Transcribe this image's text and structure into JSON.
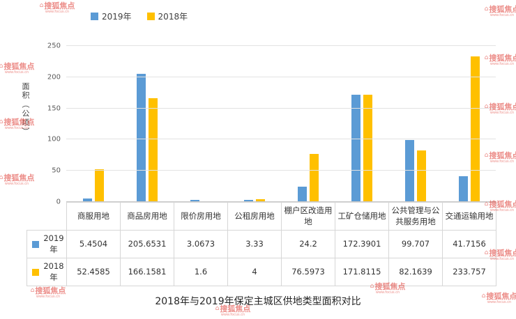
{
  "legend": {
    "items": [
      {
        "label": "2019年",
        "color": "#5b9bd5"
      },
      {
        "label": "2018年",
        "color": "#ffc000"
      }
    ]
  },
  "chart_data": {
    "type": "bar",
    "title": "2018年与2019年保定主城区供地类型面积对比",
    "xlabel": "",
    "ylabel": "面积（公顷）",
    "ylim": [
      0,
      250
    ],
    "yticks": [
      0,
      50,
      100,
      150,
      200,
      250
    ],
    "grid": true,
    "legend_position": "top",
    "categories": [
      "商服用地",
      "商品房用地",
      "限价房用地",
      "公租房用地",
      "棚户区改造用地",
      "工矿仓储用地",
      "公共管理与公共服务用地",
      "交通运输用地"
    ],
    "series": [
      {
        "name": "2019年",
        "color": "#5b9bd5",
        "values": [
          5.4504,
          205.6531,
          3.0673,
          3.33,
          24.2,
          172.3901,
          99.707,
          41.7156
        ]
      },
      {
        "name": "2018年",
        "color": "#ffc000",
        "values": [
          52.4585,
          166.1581,
          1.6,
          4,
          76.5973,
          171.8115,
          82.1639,
          233.757
        ]
      }
    ]
  },
  "table": {
    "row_labels": [
      "2019年",
      "2018年"
    ],
    "rows": [
      [
        "5.4504",
        "205.6531",
        "3.0673",
        "3.33",
        "24.2",
        "172.3901",
        "99.707",
        "41.7156"
      ],
      [
        "52.4585",
        "166.1581",
        "1.6",
        "4",
        "76.5973",
        "171.8115",
        "82.1639",
        "233.757"
      ]
    ]
  },
  "watermark": {
    "text": "搜狐焦点",
    "url": "www.focus.cn",
    "house_glyph": "⌂",
    "color": "#e0433b"
  }
}
